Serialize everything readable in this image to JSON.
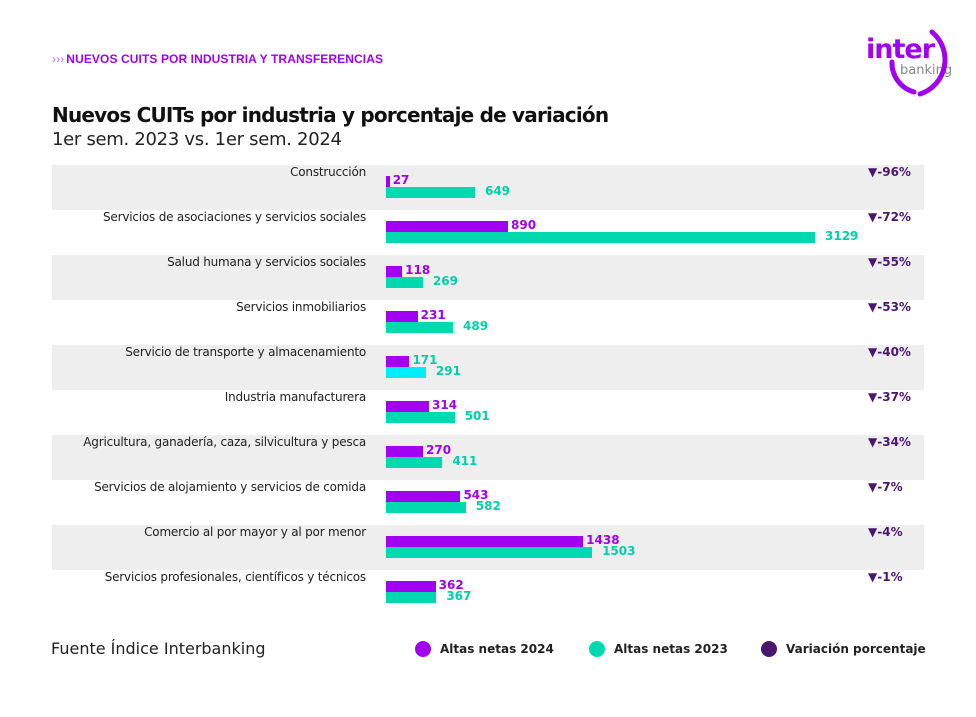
{
  "header": {
    "kicker": "NUEVOS CUITS POR INDUSTRIA Y TRANSFERENCIAS",
    "kicker_icon": "triple-chevron-right",
    "logo_text": "inter banking"
  },
  "chart_data": {
    "type": "bar",
    "orientation": "horizontal",
    "title": "Nuevos CUITs por industria y porcentaje de variación",
    "subtitle": "1er sem. 2023 vs. 1er sem. 2024",
    "categories": [
      "Construcción",
      "Servicios de asociaciones y servicios sociales",
      "Salud humana y servicios sociales",
      "Servicios inmobiliarios",
      "Servicio de transporte y almacenamiento",
      "Industria manufacturera",
      "Agricultura, ganadería, caza, silvicultura y pesca",
      "Servicios de alojamiento y servicios de comida",
      "Comercio al por mayor y al por menor",
      "Servicios profesionales, científicos y técnicos"
    ],
    "series": [
      {
        "name": "Altas netas 2024",
        "color": "#a100f2",
        "values": [
          27,
          890,
          118,
          231,
          171,
          314,
          270,
          543,
          1438,
          362
        ]
      },
      {
        "name": "Altas netas 2023",
        "color": "#00d9b0",
        "values": [
          649,
          3129,
          269,
          489,
          291,
          501,
          411,
          582,
          1503,
          367
        ]
      }
    ],
    "variation": {
      "name": "Variación porcentaje",
      "color": "#4a1670",
      "values": [
        "-96%",
        "-72%",
        "-55%",
        "-53%",
        "-40%",
        "-37%",
        "-34%",
        "-7%",
        "-4%",
        "-1%"
      ]
    },
    "xlim": [
      0,
      3129
    ],
    "grid": false,
    "legend": "bottom"
  },
  "footer": {
    "source": "Fuente Índice Interbanking"
  }
}
